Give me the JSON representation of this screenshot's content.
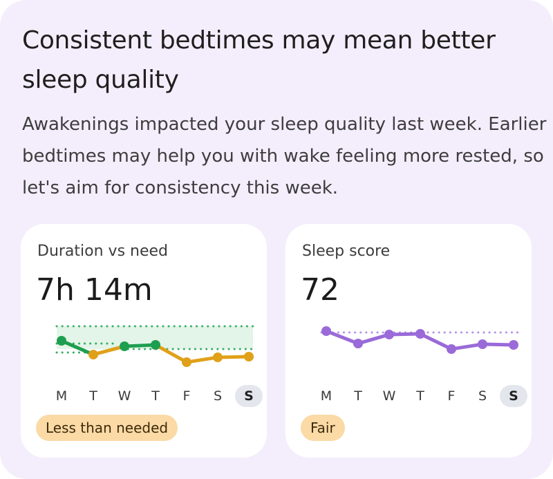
{
  "insight": {
    "title": "Consistent bedtimes may mean better sleep quality",
    "body": "Awakenings impacted your sleep quality last week. Earlier bedtimes may help you with wake feeling more rested, so let's aim for consistency this week."
  },
  "duration_card": {
    "label": "Duration vs need",
    "value": "7h 14m",
    "status": "Less than needed",
    "days": [
      "M",
      "T",
      "W",
      "T",
      "F",
      "S",
      "S"
    ],
    "today_index": 6,
    "series": [
      {
        "day": "M",
        "status": "in-range"
      },
      {
        "day": "T",
        "status": "below"
      },
      {
        "day": "W",
        "status": "in-range"
      },
      {
        "day": "T",
        "status": "in-range"
      },
      {
        "day": "F",
        "status": "below"
      },
      {
        "day": "S",
        "status": "below"
      },
      {
        "day": "S",
        "status": "below"
      }
    ],
    "colors": {
      "in_range": "#1e9e4f",
      "below": "#e0a11a",
      "band": "#e3f4e8",
      "dots": "#36ad62",
      "badge": "#fbdaa6"
    }
  },
  "score_card": {
    "label": "Sleep score",
    "value": "72",
    "status": "Fair",
    "days": [
      "M",
      "T",
      "W",
      "T",
      "F",
      "S",
      "S"
    ],
    "today_index": 6,
    "colors": {
      "line": "#9a6ad8",
      "point": "#9a6ad8",
      "baseline": "#b690e6",
      "badge": "#fbdaa6"
    }
  }
}
